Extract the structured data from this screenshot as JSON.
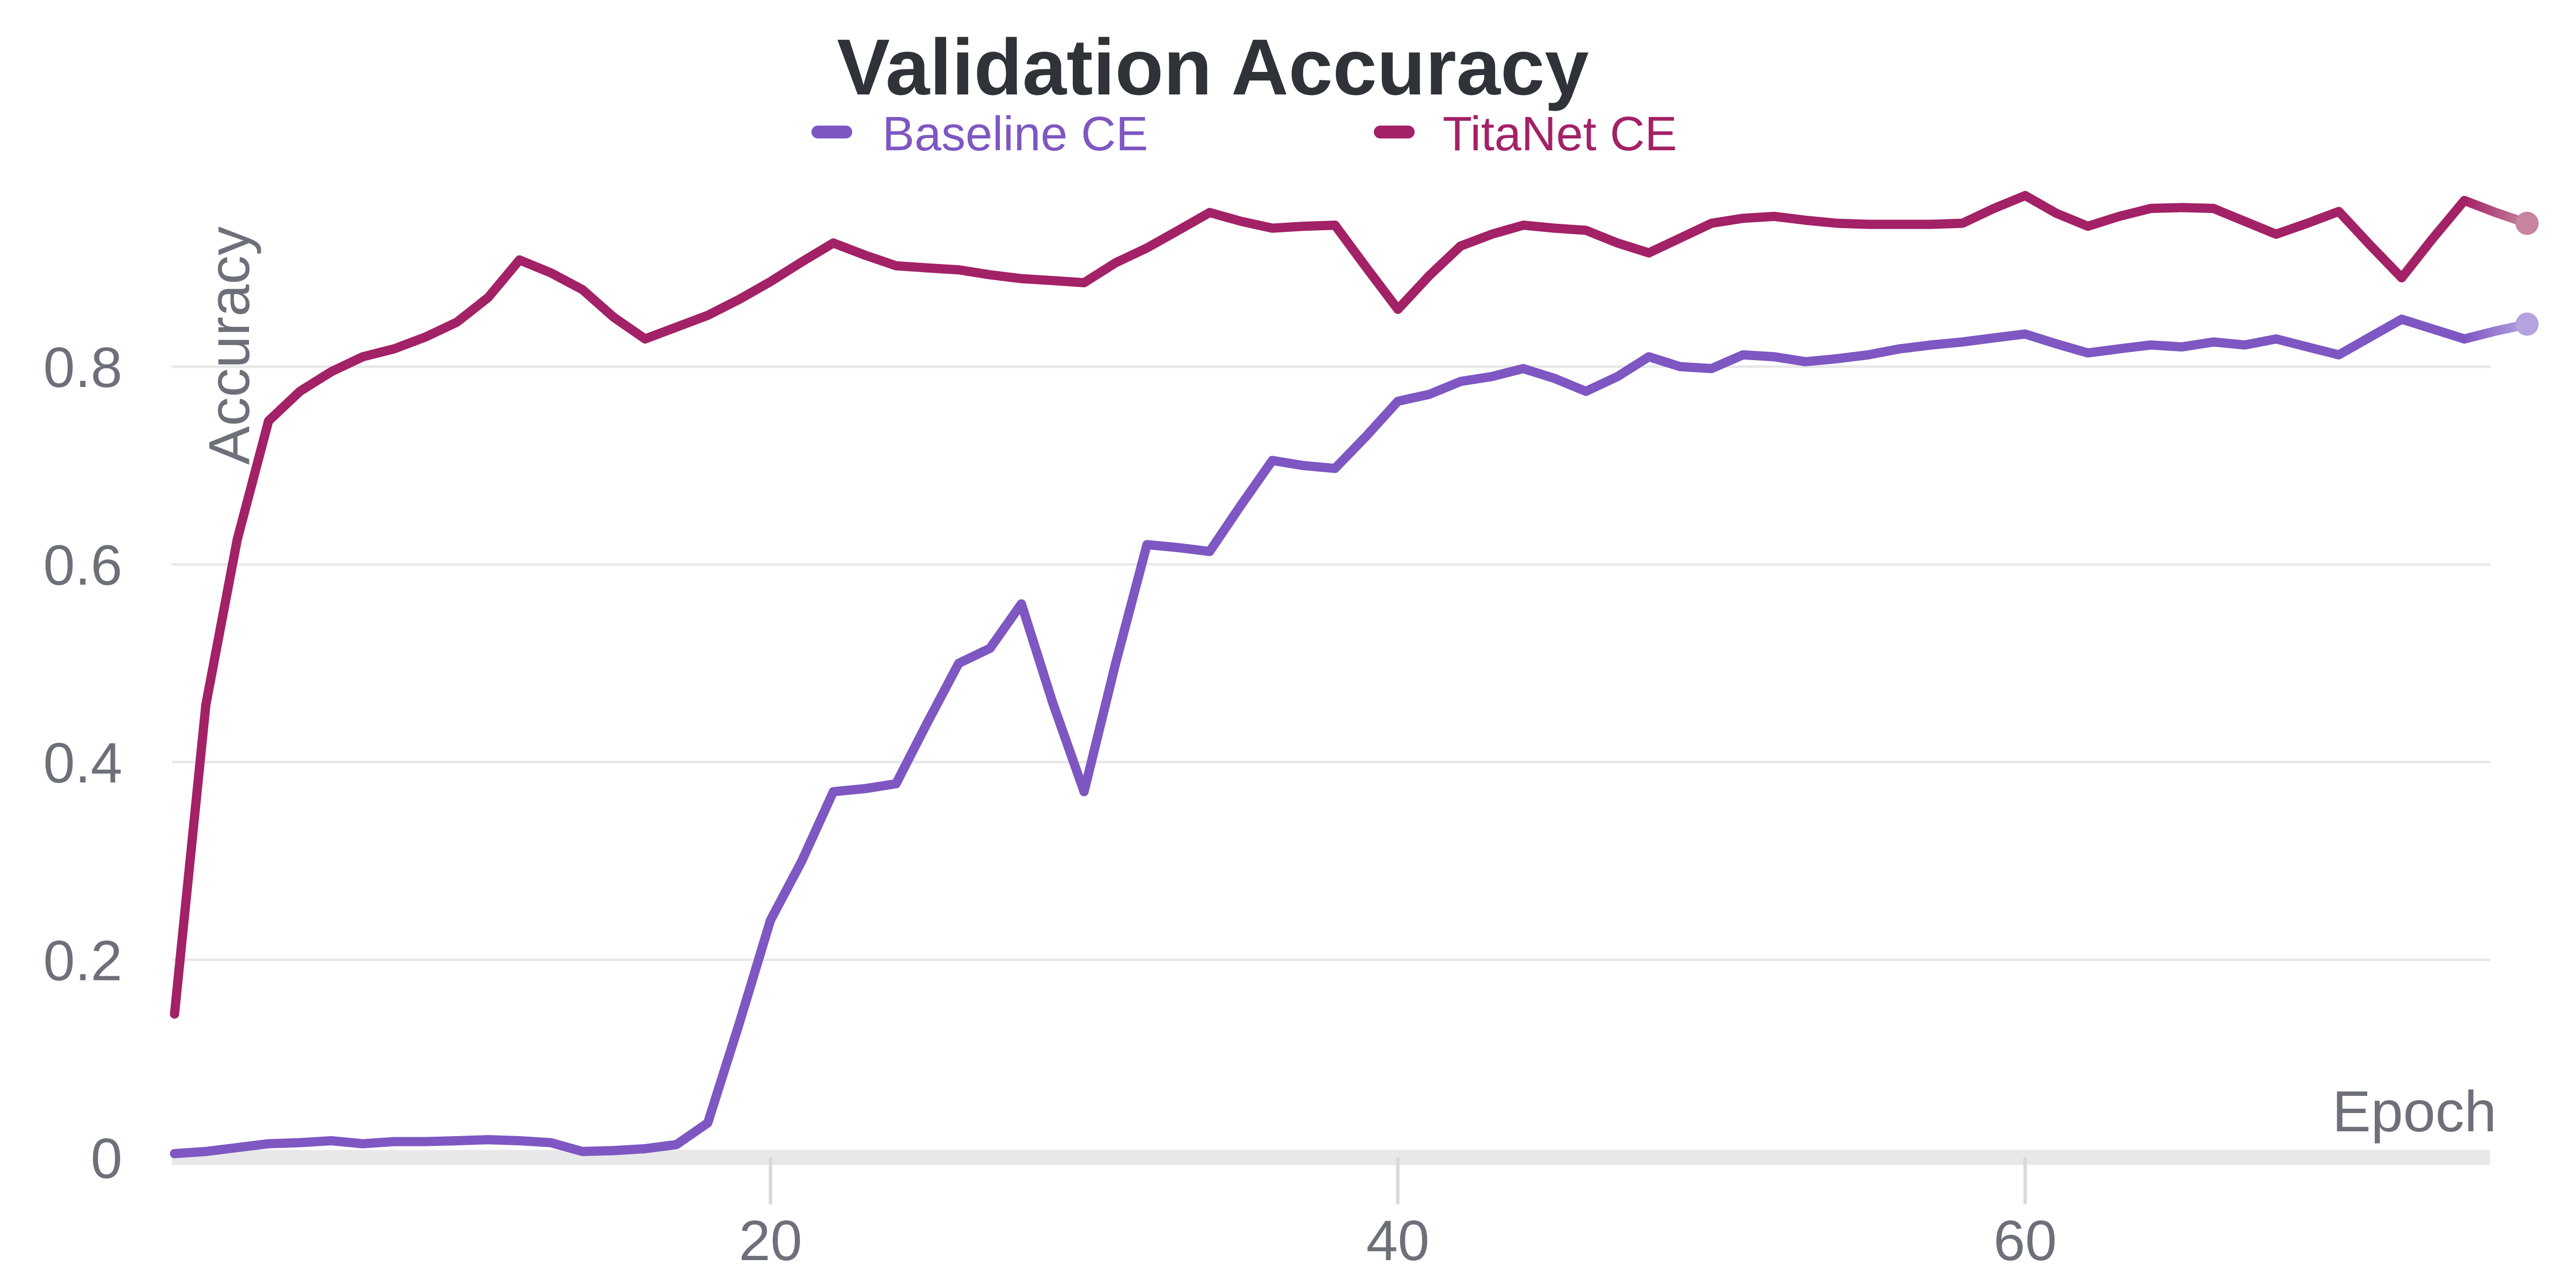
{
  "title": "Validation Accuracy",
  "legend": {
    "items": [
      {
        "label": "Baseline CE",
        "color": "#7E57C2"
      },
      {
        "label": "TitaNet CE",
        "color": "#A32166"
      }
    ]
  },
  "axes": {
    "x_title": "Epoch",
    "y_title": "Accuracy"
  },
  "colors": {
    "background": "#FFFFFF",
    "title_text": "#2F3338",
    "axis_text": "#6E7079",
    "gridline": "#E8E8E8",
    "axis_band": "#E8E8EA",
    "baseline_series": "#7E57C2",
    "baseline_end_dot": "#B4A3DF",
    "titanet_series": "#A32166",
    "titanet_end_dot": "#C6849F"
  },
  "chart_data": {
    "type": "line",
    "title": "Validation Accuracy",
    "xlabel": "Epoch",
    "ylabel": "Accuracy",
    "x_start_epoch": 1,
    "x_end_epoch": 76,
    "xlim": [
      1,
      76.5
    ],
    "ylim": [
      0,
      1.0
    ],
    "grid": "horizontal-only",
    "legend_position": "top-center",
    "x_ticks": [
      {
        "v": 20,
        "label": "20"
      },
      {
        "v": 40,
        "label": "40"
      },
      {
        "v": 60,
        "label": "60"
      }
    ],
    "y_ticks": [
      {
        "v": 0,
        "label": "0"
      },
      {
        "v": 0.2,
        "label": "0.2"
      },
      {
        "v": 0.4,
        "label": "0.4"
      },
      {
        "v": 0.6,
        "label": "0.6"
      },
      {
        "v": 0.8,
        "label": "0.8"
      }
    ],
    "series": [
      {
        "name": "TitaNet CE",
        "color": "#A32166",
        "end_dot_color": "#C6849F",
        "values": [
          0.145,
          0.458,
          0.625,
          0.745,
          0.775,
          0.795,
          0.81,
          0.818,
          0.83,
          0.845,
          0.87,
          0.908,
          0.895,
          0.878,
          0.85,
          0.828,
          0.84,
          0.852,
          0.868,
          0.886,
          0.906,
          0.925,
          0.913,
          0.902,
          0.9,
          0.898,
          0.893,
          0.889,
          0.887,
          0.885,
          0.905,
          0.92,
          0.938,
          0.956,
          0.947,
          0.94,
          0.942,
          0.943,
          0.9,
          0.858,
          0.892,
          0.922,
          0.934,
          0.943,
          0.94,
          0.938,
          0.925,
          0.915,
          0.93,
          0.945,
          0.95,
          0.952,
          0.948,
          0.945,
          0.944,
          0.944,
          0.944,
          0.945,
          0.96,
          0.973,
          0.955,
          0.942,
          0.952,
          0.96,
          0.961,
          0.96,
          0.947,
          0.934,
          0.945,
          0.957,
          0.923,
          0.89,
          0.93,
          0.968,
          0.956,
          0.945
        ]
      },
      {
        "name": "Baseline CE",
        "color": "#7E57C2",
        "end_dot_color": "#B4A3DF",
        "values": [
          0.004,
          0.006,
          0.01,
          0.014,
          0.015,
          0.017,
          0.014,
          0.016,
          0.016,
          0.017,
          0.018,
          0.017,
          0.015,
          0.006,
          0.007,
          0.009,
          0.013,
          0.035,
          0.135,
          0.24,
          0.3,
          0.37,
          0.373,
          0.378,
          0.44,
          0.5,
          0.515,
          0.56,
          0.46,
          0.37,
          0.5,
          0.62,
          0.617,
          0.613,
          0.66,
          0.705,
          0.7,
          0.697,
          0.73,
          0.765,
          0.772,
          0.785,
          0.79,
          0.798,
          0.788,
          0.775,
          0.79,
          0.81,
          0.8,
          0.798,
          0.812,
          0.81,
          0.805,
          0.808,
          0.812,
          0.818,
          0.822,
          0.825,
          0.829,
          0.833,
          0.823,
          0.814,
          0.818,
          0.822,
          0.82,
          0.825,
          0.822,
          0.828,
          0.82,
          0.812,
          0.83,
          0.848,
          0.838,
          0.828,
          0.836,
          0.843
        ]
      }
    ]
  }
}
